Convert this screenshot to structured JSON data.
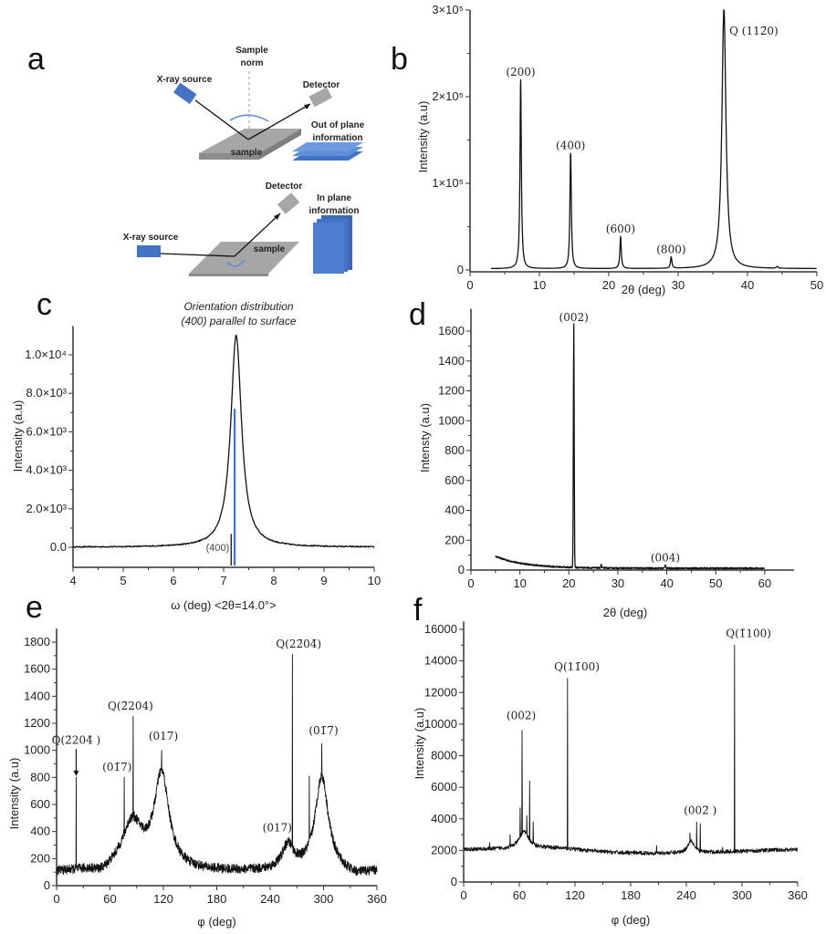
{
  "figure": {
    "panels": [
      "a",
      "b",
      "c",
      "d",
      "e",
      "f"
    ]
  },
  "diagram_a": {
    "letter": "a",
    "top": {
      "source_label": "X-ray source",
      "detector_label": "Detector",
      "normal_label_1": "Sample",
      "normal_label_2": "norm",
      "sample_label": "sample",
      "info_label_1": "Out of plane",
      "info_label_2": "information"
    },
    "bottom": {
      "source_label": "X-ray source",
      "detector_label": "Detector",
      "sample_label": "sample",
      "info_label_1": "In plane",
      "info_label_2": "information"
    },
    "colors": {
      "source": "#4472c4",
      "detector": "#a6a6a6",
      "sample": "#a6a6a6",
      "layers": "#4472c4",
      "arc": "#5b8fd6"
    }
  },
  "chart_data": [
    {
      "id": "b",
      "letter": "b",
      "type": "line",
      "title": "",
      "xlabel": "2θ (deg)",
      "ylabel": "Intensity (a.u)",
      "xlim": [
        0,
        50
      ],
      "ylim": [
        0,
        300000
      ],
      "xticks": [
        0,
        10,
        20,
        30,
        40,
        50
      ],
      "yticks": [
        {
          "v": 0,
          "label": "0"
        },
        {
          "v": 100000,
          "label": "1×10⁵"
        },
        {
          "v": 200000,
          "label": "2×10⁵"
        },
        {
          "v": 300000,
          "label": "3×10⁵"
        }
      ],
      "baseline": 1500,
      "start_x": 3,
      "peaks": [
        {
          "x": 7.3,
          "y": 218000,
          "w": 0.12,
          "label": "(200)"
        },
        {
          "x": 14.5,
          "y": 133000,
          "w": 0.12,
          "label": "(400)"
        },
        {
          "x": 21.7,
          "y": 37000,
          "w": 0.12,
          "label": "(600)"
        },
        {
          "x": 29.0,
          "y": 13000,
          "w": 0.12,
          "label": "(800)"
        },
        {
          "x": 36.6,
          "y": 300000,
          "w": 0.35,
          "label": "Q (112̄0)"
        },
        {
          "x": 44.3,
          "y": 2000,
          "w": 0.15,
          "label": ""
        }
      ]
    },
    {
      "id": "c",
      "letter": "c",
      "type": "line",
      "title": "Orientation distribution",
      "subtitle": "(400) parallel to surface",
      "xlabel": "ω (deg) <2θ=14.0°>",
      "ylabel": "Intensity (a.u)",
      "xlim": [
        4,
        10
      ],
      "ylim": [
        -1000,
        11500
      ],
      "xticks": [
        4,
        5,
        6,
        7,
        8,
        9,
        10
      ],
      "yticks": [
        {
          "v": 0,
          "label": "0.0"
        },
        {
          "v": 2000,
          "label": "2.0×10³"
        },
        {
          "v": 4000,
          "label": "4.0×10³"
        },
        {
          "v": 6000,
          "label": "6.0×10³"
        },
        {
          "v": 8000,
          "label": "8.0×10³"
        },
        {
          "v": 10000,
          "label": "1.0×10⁴"
        }
      ],
      "peak_center": 7.25,
      "peak_height": 11000,
      "peak_hwhm": 0.13,
      "reference_lines": [
        {
          "x": 7.15,
          "y_top": 700,
          "color": "#000000",
          "label": "(400)"
        },
        {
          "x": 7.22,
          "y_top": 7200,
          "color": "#4472c4",
          "label": ""
        }
      ]
    },
    {
      "id": "d",
      "letter": "d",
      "type": "line",
      "title": "",
      "xlabel": "2θ (deg)",
      "ylabel": "Intensty (a.u)",
      "xlim": [
        0,
        63
      ],
      "ylim": [
        0,
        1750
      ],
      "xticks": [
        0,
        10,
        20,
        30,
        40,
        50,
        60
      ],
      "yticks": [
        {
          "v": 0,
          "label": "0"
        },
        {
          "v": 200,
          "label": "200"
        },
        {
          "v": 400,
          "label": "400"
        },
        {
          "v": 600,
          "label": "600"
        },
        {
          "v": 800,
          "label": "800"
        },
        {
          "v": 1000,
          "label": "1000"
        },
        {
          "v": 1200,
          "label": "1200"
        },
        {
          "v": 1400,
          "label": "1400"
        },
        {
          "v": 1600,
          "label": "1600"
        }
      ],
      "start_x": 5,
      "end_x": 60,
      "peaks": [
        {
          "x": 21.0,
          "y": 1630,
          "w": 0.12,
          "label": "(002)"
        },
        {
          "x": 26.6,
          "y": 25,
          "w": 0.1,
          "label": ""
        },
        {
          "x": 39.7,
          "y": 22,
          "w": 0.15,
          "label": "(004)"
        }
      ]
    },
    {
      "id": "e",
      "letter": "e",
      "type": "line",
      "title": "",
      "xlabel": "φ (deg)",
      "ylabel": "Intensity (a.u)",
      "xlim": [
        0,
        360
      ],
      "ylim": [
        0,
        1900
      ],
      "xticks": [
        0,
        60,
        120,
        180,
        240,
        300,
        360
      ],
      "yticks": [
        {
          "v": 0,
          "label": "0"
        },
        {
          "v": 200,
          "label": "200"
        },
        {
          "v": 400,
          "label": "400"
        },
        {
          "v": 600,
          "label": "600"
        },
        {
          "v": 800,
          "label": "800"
        },
        {
          "v": 1000,
          "label": "1000"
        },
        {
          "v": 1200,
          "label": "1200"
        },
        {
          "v": 1400,
          "label": "1400"
        },
        {
          "v": 1600,
          "label": "1600"
        },
        {
          "v": 1800,
          "label": "1800"
        }
      ],
      "baseline": 100,
      "broad_peaks": [
        {
          "x": 118,
          "y": 700,
          "w": 10
        },
        {
          "x": 85,
          "y": 350,
          "w": 14
        },
        {
          "x": 298,
          "y": 700,
          "w": 9
        },
        {
          "x": 260,
          "y": 180,
          "w": 8
        }
      ],
      "sharp_peaks": [
        {
          "x": 22,
          "y": 800
        },
        {
          "x": 76,
          "y": 800
        },
        {
          "x": 86,
          "y": 1250
        },
        {
          "x": 118,
          "y": 1000
        },
        {
          "x": 265,
          "y": 1710
        },
        {
          "x": 284,
          "y": 810
        },
        {
          "x": 298,
          "y": 1050
        }
      ],
      "labels": [
        {
          "text": "Q(2̄204̄ )",
          "x": 22,
          "y": 1050,
          "arrow": true
        },
        {
          "text": "(01̄7)",
          "x": 68,
          "y": 850
        },
        {
          "text": "Q(2̄204)",
          "x": 83,
          "y": 1300
        },
        {
          "text": "(017)",
          "x": 120,
          "y": 1080
        },
        {
          "text": "(017̄)",
          "x": 248,
          "y": 400
        },
        {
          "text": "Q(22̄04̄)",
          "x": 272,
          "y": 1760
        },
        {
          "text": "(01̄7̄)",
          "x": 300,
          "y": 1120
        }
      ]
    },
    {
      "id": "f",
      "letter": "f",
      "type": "line",
      "title": "",
      "xlabel": "φ (deg)",
      "ylabel": "Intensity (a.u)",
      "xlim": [
        0,
        360
      ],
      "ylim": [
        0,
        16500
      ],
      "xticks": [
        0,
        60,
        120,
        180,
        240,
        300,
        360
      ],
      "yticks": [
        {
          "v": 0,
          "label": "0"
        },
        {
          "v": 2000,
          "label": "2000"
        },
        {
          "v": 4000,
          "label": "4000"
        },
        {
          "v": 6000,
          "label": "6000"
        },
        {
          "v": 8000,
          "label": "8000"
        },
        {
          "v": 10000,
          "label": "10000"
        },
        {
          "v": 12000,
          "label": "12000"
        },
        {
          "v": 14000,
          "label": "14000"
        },
        {
          "v": 16000,
          "label": "16000"
        }
      ],
      "baseline": 1950,
      "broad_peaks": [
        {
          "x": 65,
          "y": 1100,
          "w": 6
        },
        {
          "x": 245,
          "y": 800,
          "w": 4
        }
      ],
      "sharp_peaks": [
        {
          "x": 28,
          "y": 2500
        },
        {
          "x": 50,
          "y": 3000
        },
        {
          "x": 61,
          "y": 4700
        },
        {
          "x": 63,
          "y": 9600
        },
        {
          "x": 68,
          "y": 4200
        },
        {
          "x": 71,
          "y": 6400
        },
        {
          "x": 75,
          "y": 3800
        },
        {
          "x": 112,
          "y": 12900
        },
        {
          "x": 208,
          "y": 2300
        },
        {
          "x": 244,
          "y": 3100
        },
        {
          "x": 251,
          "y": 3800
        },
        {
          "x": 255,
          "y": 3700
        },
        {
          "x": 279,
          "y": 2200
        },
        {
          "x": 292,
          "y": 15000
        }
      ],
      "labels": [
        {
          "text": "(002)",
          "x": 62,
          "y": 10300
        },
        {
          "text": "Q(11̄00)",
          "x": 122,
          "y": 13400
        },
        {
          "text": "(002̄ )",
          "x": 255,
          "y": 4300
        },
        {
          "text": "Q(1̄100)",
          "x": 307,
          "y": 15500
        }
      ]
    }
  ],
  "colors": {
    "line": "#111111",
    "axis": "#333333",
    "accent": "#4472c4"
  }
}
